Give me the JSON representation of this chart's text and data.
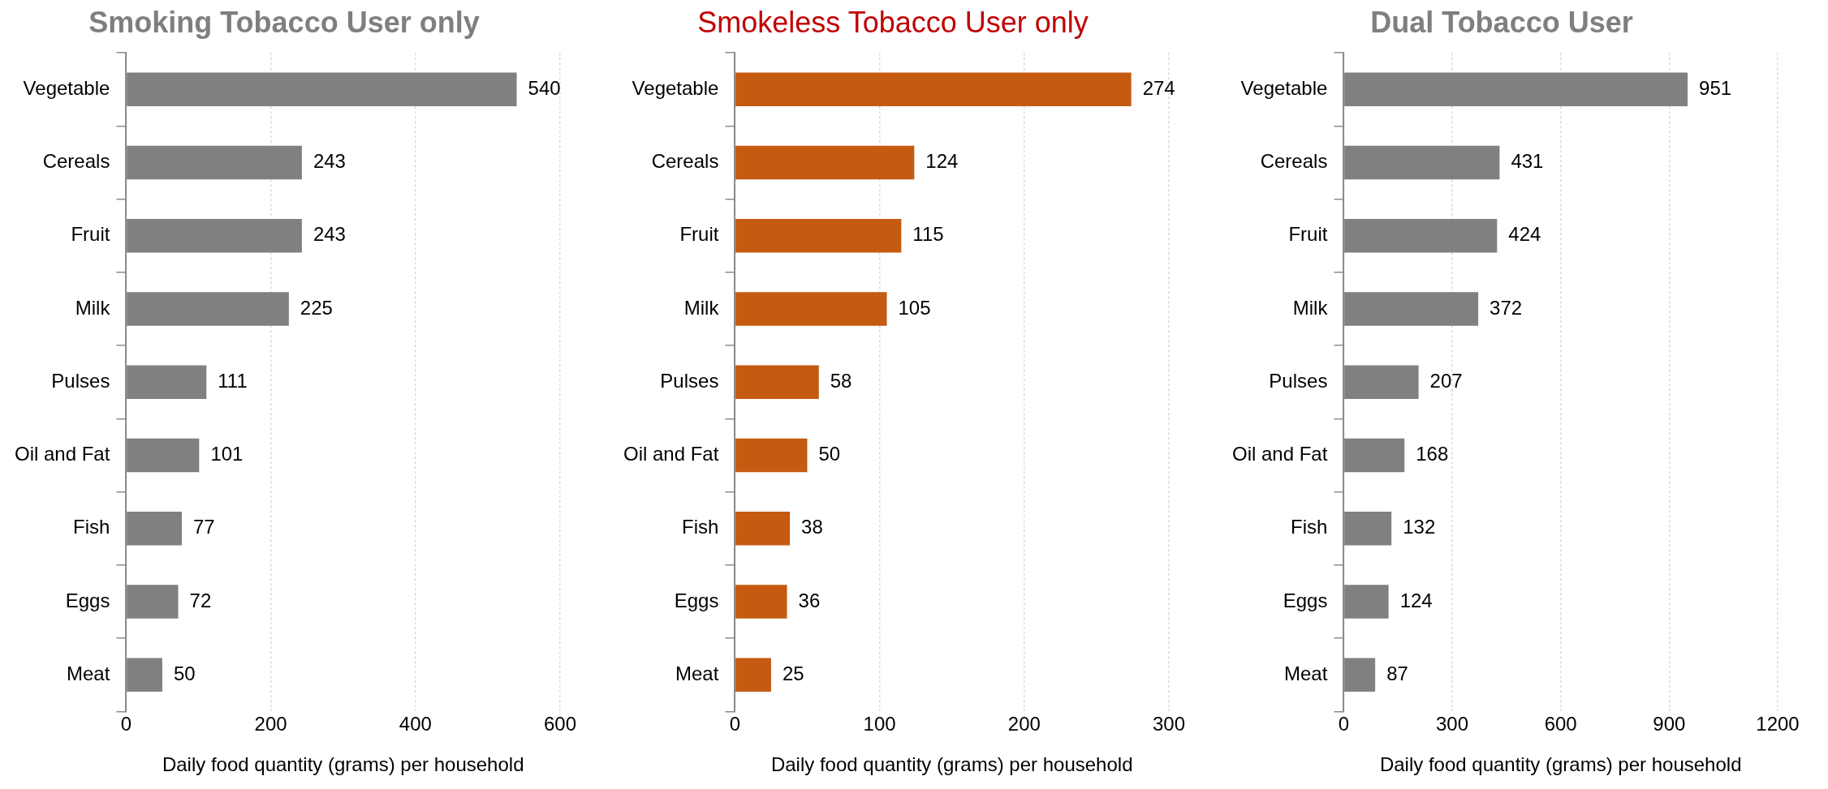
{
  "chart_data": [
    {
      "type": "bar",
      "orientation": "horizontal",
      "title": "Smoking Tobacco User only",
      "xlabel": "Daily food quantity (grams) per household",
      "categories": [
        "Vegetable",
        "Cereals",
        "Fruit",
        "Milk",
        "Pulses",
        "Oil and Fat",
        "Fish",
        "Eggs",
        "Meat"
      ],
      "values": [
        540,
        243,
        243,
        225,
        111,
        101,
        77,
        72,
        50
      ],
      "color": "#808080",
      "xlim": [
        0,
        600
      ],
      "xticks": [
        0,
        200,
        400,
        600
      ],
      "grid": "x",
      "data_labels": true
    },
    {
      "type": "bar",
      "orientation": "horizontal",
      "title": "Smokeless Tobacco User only",
      "xlabel": "Daily food quantity (grams) per household",
      "categories": [
        "Vegetable",
        "Cereals",
        "Fruit",
        "Milk",
        "Pulses",
        "Oil and Fat",
        "Fish",
        "Eggs",
        "Meat"
      ],
      "values": [
        274,
        124,
        115,
        105,
        58,
        50,
        38,
        36,
        25
      ],
      "color": "#c55a11",
      "xlim": [
        0,
        300
      ],
      "xticks": [
        0,
        100,
        200,
        300
      ],
      "grid": "x",
      "data_labels": true
    },
    {
      "type": "bar",
      "orientation": "horizontal",
      "title": "Dual Tobacco User",
      "xlabel": "Daily food quantity (grams) per household",
      "categories": [
        "Vegetable",
        "Cereals",
        "Fruit",
        "Milk",
        "Pulses",
        "Oil and Fat",
        "Fish",
        "Eggs",
        "Meat"
      ],
      "values": [
        951,
        431,
        424,
        372,
        207,
        168,
        132,
        124,
        87
      ],
      "color": "#808080",
      "xlim": [
        0,
        1200
      ],
      "xticks": [
        0,
        300,
        600,
        900,
        1200
      ],
      "grid": "x",
      "data_labels": true
    }
  ]
}
